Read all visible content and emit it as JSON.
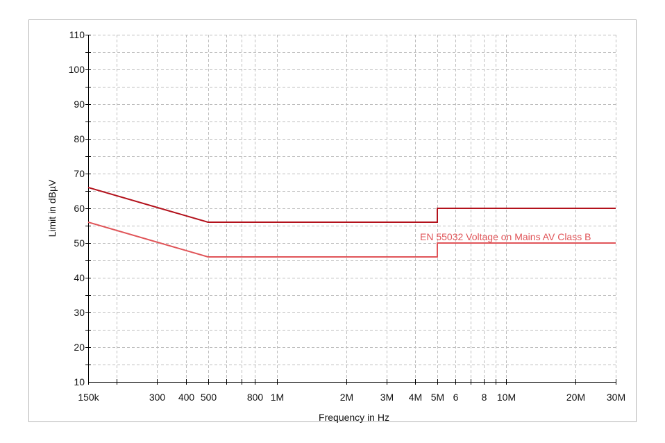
{
  "chart_data": {
    "type": "line",
    "xlabel": "Frequency in Hz",
    "ylabel": "Limit in dBµV",
    "x_scale": "log",
    "xlim": [
      150000,
      30000000
    ],
    "ylim": [
      10,
      110
    ],
    "grid": true,
    "x_ticks": [
      {
        "v": 150000,
        "l": "150k"
      },
      {
        "v": 200000,
        "l": ""
      },
      {
        "v": 300000,
        "l": "300"
      },
      {
        "v": 400000,
        "l": "400"
      },
      {
        "v": 500000,
        "l": "500"
      },
      {
        "v": 600000,
        "l": ""
      },
      {
        "v": 700000,
        "l": ""
      },
      {
        "v": 800000,
        "l": "800"
      },
      {
        "v": 1000000,
        "l": "1M"
      },
      {
        "v": 2000000,
        "l": "2M"
      },
      {
        "v": 3000000,
        "l": "3M"
      },
      {
        "v": 4000000,
        "l": "4M"
      },
      {
        "v": 5000000,
        "l": "5M"
      },
      {
        "v": 6000000,
        "l": "6"
      },
      {
        "v": 7000000,
        "l": ""
      },
      {
        "v": 8000000,
        "l": "8"
      },
      {
        "v": 9000000,
        "l": ""
      },
      {
        "v": 10000000,
        "l": "10M"
      },
      {
        "v": 20000000,
        "l": "20M"
      },
      {
        "v": 30000000,
        "l": "30M"
      }
    ],
    "y_ticks": [
      10,
      20,
      30,
      40,
      50,
      60,
      70,
      80,
      90,
      100,
      110
    ],
    "series": [
      {
        "color": "#b3121c",
        "points": [
          [
            150000,
            66
          ],
          [
            500000,
            56
          ],
          [
            5000000,
            56
          ],
          [
            5000000,
            60
          ],
          [
            30000000,
            60
          ]
        ]
      },
      {
        "name": "EN 55032 Voltage on Mains AV Class B",
        "color": "#e05458",
        "points": [
          [
            150000,
            56
          ],
          [
            500000,
            46
          ],
          [
            5000000,
            46
          ],
          [
            5000000,
            50
          ],
          [
            30000000,
            50
          ]
        ]
      }
    ]
  }
}
